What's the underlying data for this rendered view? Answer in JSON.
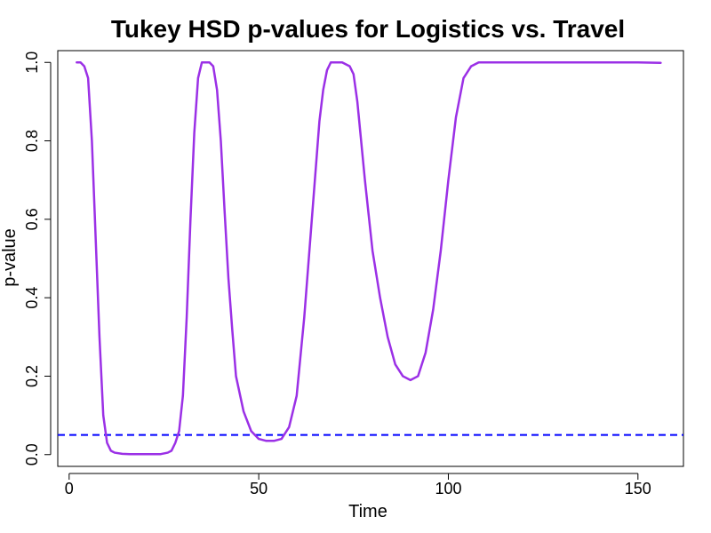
{
  "chart_data": {
    "type": "line",
    "title": "Tukey HSD p-values for Logistics vs. Travel",
    "xlabel": "Time",
    "ylabel": "p-value",
    "xlim": [
      -3,
      162
    ],
    "ylim": [
      -0.03,
      1.03
    ],
    "xticks": [
      0,
      50,
      100,
      150
    ],
    "yticks": [
      0.0,
      0.2,
      0.4,
      0.6,
      0.8,
      1.0
    ],
    "xtick_labels": [
      "0",
      "50",
      "100",
      "150"
    ],
    "ytick_labels": [
      "0.0",
      "0.2",
      "0.4",
      "0.6",
      "0.8",
      "1.0"
    ],
    "grid": false,
    "series": [
      {
        "color": "#9B30E6",
        "x": [
          2,
          3,
          4,
          5,
          6,
          7,
          8,
          9,
          10,
          11,
          12,
          14,
          16,
          18,
          20,
          22,
          24,
          26,
          27,
          28,
          29,
          30,
          31,
          32,
          33,
          34,
          35,
          36,
          37,
          38,
          39,
          40,
          41,
          42,
          43,
          44,
          46,
          48,
          50,
          52,
          54,
          56,
          58,
          60,
          62,
          64,
          66,
          67,
          68,
          69,
          70,
          72,
          74,
          75,
          76,
          78,
          80,
          82,
          84,
          86,
          88,
          90,
          92,
          94,
          96,
          98,
          100,
          102,
          104,
          106,
          108,
          110,
          115,
          120,
          130,
          140,
          150,
          156
        ],
        "y": [
          1.0,
          1.0,
          0.99,
          0.96,
          0.8,
          0.55,
          0.3,
          0.1,
          0.03,
          0.01,
          0.005,
          0.002,
          0.001,
          0.001,
          0.001,
          0.001,
          0.001,
          0.005,
          0.01,
          0.03,
          0.06,
          0.15,
          0.35,
          0.6,
          0.82,
          0.96,
          1.0,
          1.0,
          1.0,
          0.99,
          0.93,
          0.8,
          0.62,
          0.45,
          0.32,
          0.2,
          0.11,
          0.06,
          0.04,
          0.035,
          0.035,
          0.04,
          0.07,
          0.15,
          0.35,
          0.6,
          0.85,
          0.93,
          0.98,
          1.0,
          1.0,
          1.0,
          0.99,
          0.97,
          0.9,
          0.7,
          0.52,
          0.4,
          0.3,
          0.23,
          0.2,
          0.19,
          0.2,
          0.26,
          0.37,
          0.52,
          0.7,
          0.86,
          0.96,
          0.99,
          1.0,
          1.0,
          1.0,
          1.0,
          1.0,
          1.0,
          1.0,
          0.999
        ]
      }
    ],
    "reference_line": {
      "y": 0.05,
      "color": "#0000FF",
      "style": "dashed"
    }
  }
}
